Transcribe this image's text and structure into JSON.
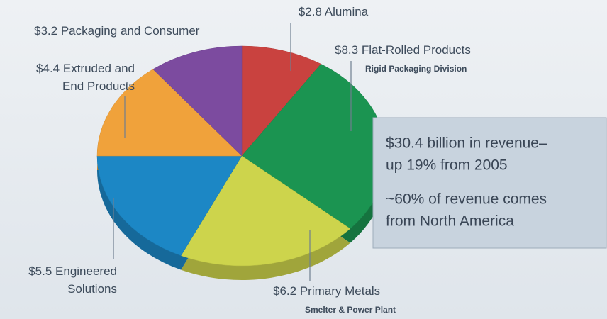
{
  "chart_data": {
    "type": "pie",
    "categories": [
      [
        "Alumina"
      ],
      [
        "Flat-Rolled Products"
      ],
      [
        "Primary Metals"
      ],
      [
        "Engineered",
        "Solutions"
      ],
      [
        "Extruded and",
        "End Products"
      ],
      [
        "Packaging and Consumer"
      ]
    ],
    "values": [
      2.8,
      8.3,
      6.2,
      5.5,
      4.4,
      3.2
    ],
    "value_labels": [
      "$2.8",
      "$8.3",
      "$6.2",
      "$5.5",
      "$4.4",
      "$3.2"
    ],
    "sublabels": [
      null,
      "Rigid Packaging Division",
      "Smelter & Power Plant",
      null,
      null,
      null
    ],
    "colors": [
      "#c9423f",
      "#1b9451",
      "#cdd44c",
      "#1c87c5",
      "#f0a23b",
      "#7c4b9f"
    ],
    "notes": [
      [
        "$30.4 billion in revenue–",
        "up 19% from 2005"
      ],
      [
        "~60% of revenue comes",
        "from North America"
      ]
    ]
  }
}
